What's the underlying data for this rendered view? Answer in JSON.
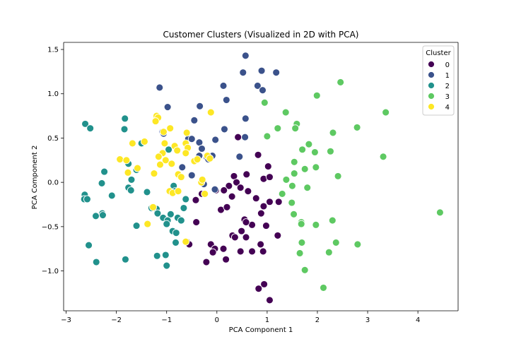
{
  "chart_data": {
    "type": "scatter",
    "title": "Customer Clusters (Visualized in 2D with PCA)",
    "xlabel": "PCA Component 1",
    "ylabel": "PCA Component 2",
    "xlim": [
      -3.05,
      4.8
    ],
    "ylim": [
      -1.45,
      1.58
    ],
    "xticks": [
      -3,
      -2,
      -1,
      0,
      1,
      2,
      3,
      4
    ],
    "yticks": [
      -1.0,
      -0.5,
      0.0,
      0.5,
      1.0,
      1.5
    ],
    "xtick_labels": [
      "−3",
      "−2",
      "−1",
      "0",
      "1",
      "2",
      "3",
      "4"
    ],
    "ytick_labels": [
      "−1.0",
      "−0.5",
      "0.0",
      "0.5",
      "1.0",
      "1.5"
    ],
    "grid": false,
    "legend": {
      "title": "Cluster",
      "position": "top-right",
      "entries": [
        "0",
        "1",
        "2",
        "3",
        "4"
      ]
    },
    "series": [
      {
        "name": "0",
        "color": "#440154",
        "points": [
          [
            0.82,
            0.31
          ],
          [
            0.59,
            0.09
          ],
          [
            0.93,
            0.04
          ],
          [
            0.34,
            0.07
          ],
          [
            0.39,
            0.0
          ],
          [
            1.02,
            0.18
          ],
          [
            0.24,
            -0.04
          ],
          [
            0.47,
            -0.06
          ],
          [
            0.62,
            -0.1
          ],
          [
            0.14,
            -0.09
          ],
          [
            1.05,
            0.06
          ],
          [
            0.78,
            -0.18
          ],
          [
            -0.02,
            -0.09
          ],
          [
            0.3,
            -0.16
          ],
          [
            0.93,
            -0.27
          ],
          [
            1.05,
            -0.22
          ],
          [
            -0.3,
            -0.13
          ],
          [
            -0.42,
            -0.2
          ],
          [
            0.08,
            -0.31
          ],
          [
            0.2,
            -0.28
          ],
          [
            0.88,
            -0.35
          ],
          [
            0.55,
            -0.42
          ],
          [
            0.7,
            -0.48
          ],
          [
            0.98,
            -0.49
          ],
          [
            0.49,
            -0.55
          ],
          [
            -0.41,
            -0.45
          ],
          [
            0.31,
            -0.6
          ],
          [
            0.58,
            -0.62
          ],
          [
            1.21,
            -0.6
          ],
          [
            0.36,
            -0.62
          ],
          [
            0.87,
            -0.7
          ],
          [
            -0.6,
            -0.67
          ],
          [
            -0.55,
            -0.7
          ],
          [
            -0.12,
            -0.7
          ],
          [
            -0.04,
            -0.75
          ],
          [
            0.13,
            -0.75
          ],
          [
            -0.08,
            -0.79
          ],
          [
            0.47,
            -0.78
          ],
          [
            0.7,
            -0.78
          ],
          [
            0.92,
            -0.78
          ],
          [
            -0.21,
            -0.9
          ],
          [
            0.18,
            -0.87
          ],
          [
            0.94,
            -1.15
          ],
          [
            0.83,
            -1.2
          ],
          [
            1.05,
            -1.33
          ],
          [
            0.42,
            0.51
          ],
          [
            1.23,
            -0.22
          ],
          [
            0.58,
            -0.45
          ]
        ]
      },
      {
        "name": "1",
        "color": "#3b528b",
        "points": [
          [
            0.57,
            1.43
          ],
          [
            0.52,
            1.24
          ],
          [
            0.89,
            1.26
          ],
          [
            1.18,
            1.24
          ],
          [
            0.13,
            1.09
          ],
          [
            0.81,
            1.09
          ],
          [
            0.91,
            1.04
          ],
          [
            -1.14,
            1.07
          ],
          [
            0.19,
            0.93
          ],
          [
            -0.98,
            0.85
          ],
          [
            -0.34,
            0.86
          ],
          [
            0.57,
            0.72
          ],
          [
            -0.45,
            0.7
          ],
          [
            -1.08,
            0.57
          ],
          [
            -1.06,
            0.55
          ],
          [
            0.15,
            0.6
          ],
          [
            0.56,
            0.51
          ],
          [
            -0.57,
            0.49
          ],
          [
            -0.5,
            0.49
          ],
          [
            -0.35,
            0.45
          ],
          [
            -0.03,
            0.48
          ],
          [
            -0.3,
            0.38
          ],
          [
            -0.35,
            0.3
          ],
          [
            -0.2,
            0.28
          ],
          [
            -0.17,
            0.26
          ],
          [
            0.45,
            0.29
          ],
          [
            -0.09,
            0.3
          ],
          [
            -0.69,
            0.17
          ],
          [
            -0.5,
            0.08
          ],
          [
            -0.26,
            -0.02
          ],
          [
            -0.04,
            -0.08
          ]
        ]
      },
      {
        "name": "2",
        "color": "#21918c",
        "points": [
          [
            -2.62,
            0.66
          ],
          [
            -2.52,
            0.61
          ],
          [
            -1.83,
            0.72
          ],
          [
            -1.84,
            0.6
          ],
          [
            -1.5,
            0.44
          ],
          [
            -0.96,
            0.37
          ],
          [
            -1.76,
            0.21
          ],
          [
            -2.24,
            0.12
          ],
          [
            -1.6,
            0.14
          ],
          [
            -2.29,
            -0.01
          ],
          [
            -1.7,
            0.03
          ],
          [
            -1.76,
            -0.06
          ],
          [
            -1.71,
            -0.09
          ],
          [
            -2.63,
            -0.14
          ],
          [
            -2.64,
            -0.19
          ],
          [
            -2.09,
            -0.15
          ],
          [
            -1.39,
            -0.11
          ],
          [
            -0.86,
            -0.04
          ],
          [
            -0.83,
            -0.1
          ],
          [
            -0.62,
            -0.19
          ],
          [
            -2.58,
            -0.19
          ],
          [
            -2.28,
            -0.35
          ],
          [
            -2.41,
            -0.38
          ],
          [
            -2.27,
            -0.37
          ],
          [
            -1.3,
            -0.29
          ],
          [
            -1.2,
            -0.3
          ],
          [
            -1.18,
            -0.35
          ],
          [
            -1.07,
            -0.4
          ],
          [
            -0.92,
            -0.36
          ],
          [
            -0.78,
            -0.4
          ],
          [
            -0.98,
            -0.43
          ],
          [
            -0.71,
            -0.43
          ],
          [
            -1.0,
            -0.47
          ],
          [
            -1.6,
            -0.49
          ],
          [
            -0.88,
            -0.55
          ],
          [
            -0.81,
            -0.57
          ],
          [
            -2.55,
            -0.71
          ],
          [
            -0.82,
            -0.68
          ],
          [
            -1.19,
            -0.83
          ],
          [
            -1.02,
            -0.82
          ],
          [
            -1.82,
            -0.87
          ],
          [
            -2.4,
            -0.9
          ],
          [
            -1.0,
            -0.94
          ],
          [
            -0.66,
            -0.29
          ]
        ]
      },
      {
        "name": "3",
        "color": "#5ec962",
        "points": [
          [
            2.46,
            1.13
          ],
          [
            1.99,
            0.98
          ],
          [
            0.95,
            0.9
          ],
          [
            1.37,
            0.79
          ],
          [
            3.36,
            0.79
          ],
          [
            1.59,
            0.66
          ],
          [
            1.21,
            0.61
          ],
          [
            1.56,
            0.61
          ],
          [
            2.79,
            0.62
          ],
          [
            1.0,
            0.52
          ],
          [
            2.31,
            0.56
          ],
          [
            1.83,
            0.43
          ],
          [
            1.7,
            0.37
          ],
          [
            1.95,
            0.34
          ],
          [
            2.26,
            0.35
          ],
          [
            3.31,
            0.29
          ],
          [
            1.54,
            0.23
          ],
          [
            1.54,
            0.1
          ],
          [
            1.75,
            0.15
          ],
          [
            1.97,
            0.17
          ],
          [
            1.38,
            0.03
          ],
          [
            2.41,
            0.07
          ],
          [
            1.5,
            -0.04
          ],
          [
            1.8,
            -0.06
          ],
          [
            1.3,
            -0.13
          ],
          [
            1.49,
            -0.23
          ],
          [
            4.44,
            -0.34
          ],
          [
            1.53,
            -0.36
          ],
          [
            1.68,
            -0.45
          ],
          [
            1.68,
            -0.47
          ],
          [
            1.97,
            -0.48
          ],
          [
            2.3,
            -0.43
          ],
          [
            2.8,
            -0.7
          ],
          [
            1.69,
            -0.68
          ],
          [
            2.37,
            -0.68
          ],
          [
            1.65,
            -0.8
          ],
          [
            2.23,
            -0.79
          ],
          [
            1.75,
            -0.99
          ],
          [
            2.12,
            -1.19
          ]
        ]
      },
      {
        "name": "4",
        "color": "#fde725",
        "points": [
          [
            -1.2,
            0.75
          ],
          [
            -1.17,
            0.73
          ],
          [
            -1.22,
            0.69
          ],
          [
            -0.12,
            0.79
          ],
          [
            -0.93,
            0.61
          ],
          [
            -1.06,
            0.57
          ],
          [
            -0.6,
            0.56
          ],
          [
            -1.68,
            0.44
          ],
          [
            -1.44,
            0.46
          ],
          [
            -1.04,
            0.44
          ],
          [
            -0.84,
            0.41
          ],
          [
            -0.62,
            0.44
          ],
          [
            -0.58,
            0.39
          ],
          [
            -0.79,
            0.36
          ],
          [
            -1.08,
            0.33
          ],
          [
            -0.62,
            0.33
          ],
          [
            -1.93,
            0.26
          ],
          [
            -1.8,
            0.25
          ],
          [
            -1.16,
            0.29
          ],
          [
            -1.02,
            0.25
          ],
          [
            -0.9,
            0.21
          ],
          [
            -0.45,
            0.24
          ],
          [
            -0.39,
            0.26
          ],
          [
            -0.19,
            0.3
          ],
          [
            -0.14,
            0.27
          ],
          [
            -1.77,
            0.11
          ],
          [
            -1.58,
            0.16
          ],
          [
            -1.13,
            0.2
          ],
          [
            -0.77,
            0.09
          ],
          [
            -0.71,
            0.06
          ],
          [
            -1.25,
            0.1
          ],
          [
            -0.31,
            0.0
          ],
          [
            -0.94,
            -0.1
          ],
          [
            -0.88,
            -0.12
          ],
          [
            -0.77,
            -0.1
          ],
          [
            -0.24,
            -0.13
          ],
          [
            -1.27,
            -0.28
          ],
          [
            -1.38,
            -0.47
          ],
          [
            -0.62,
            -0.67
          ],
          [
            -0.29,
            0.03
          ]
        ]
      }
    ]
  }
}
